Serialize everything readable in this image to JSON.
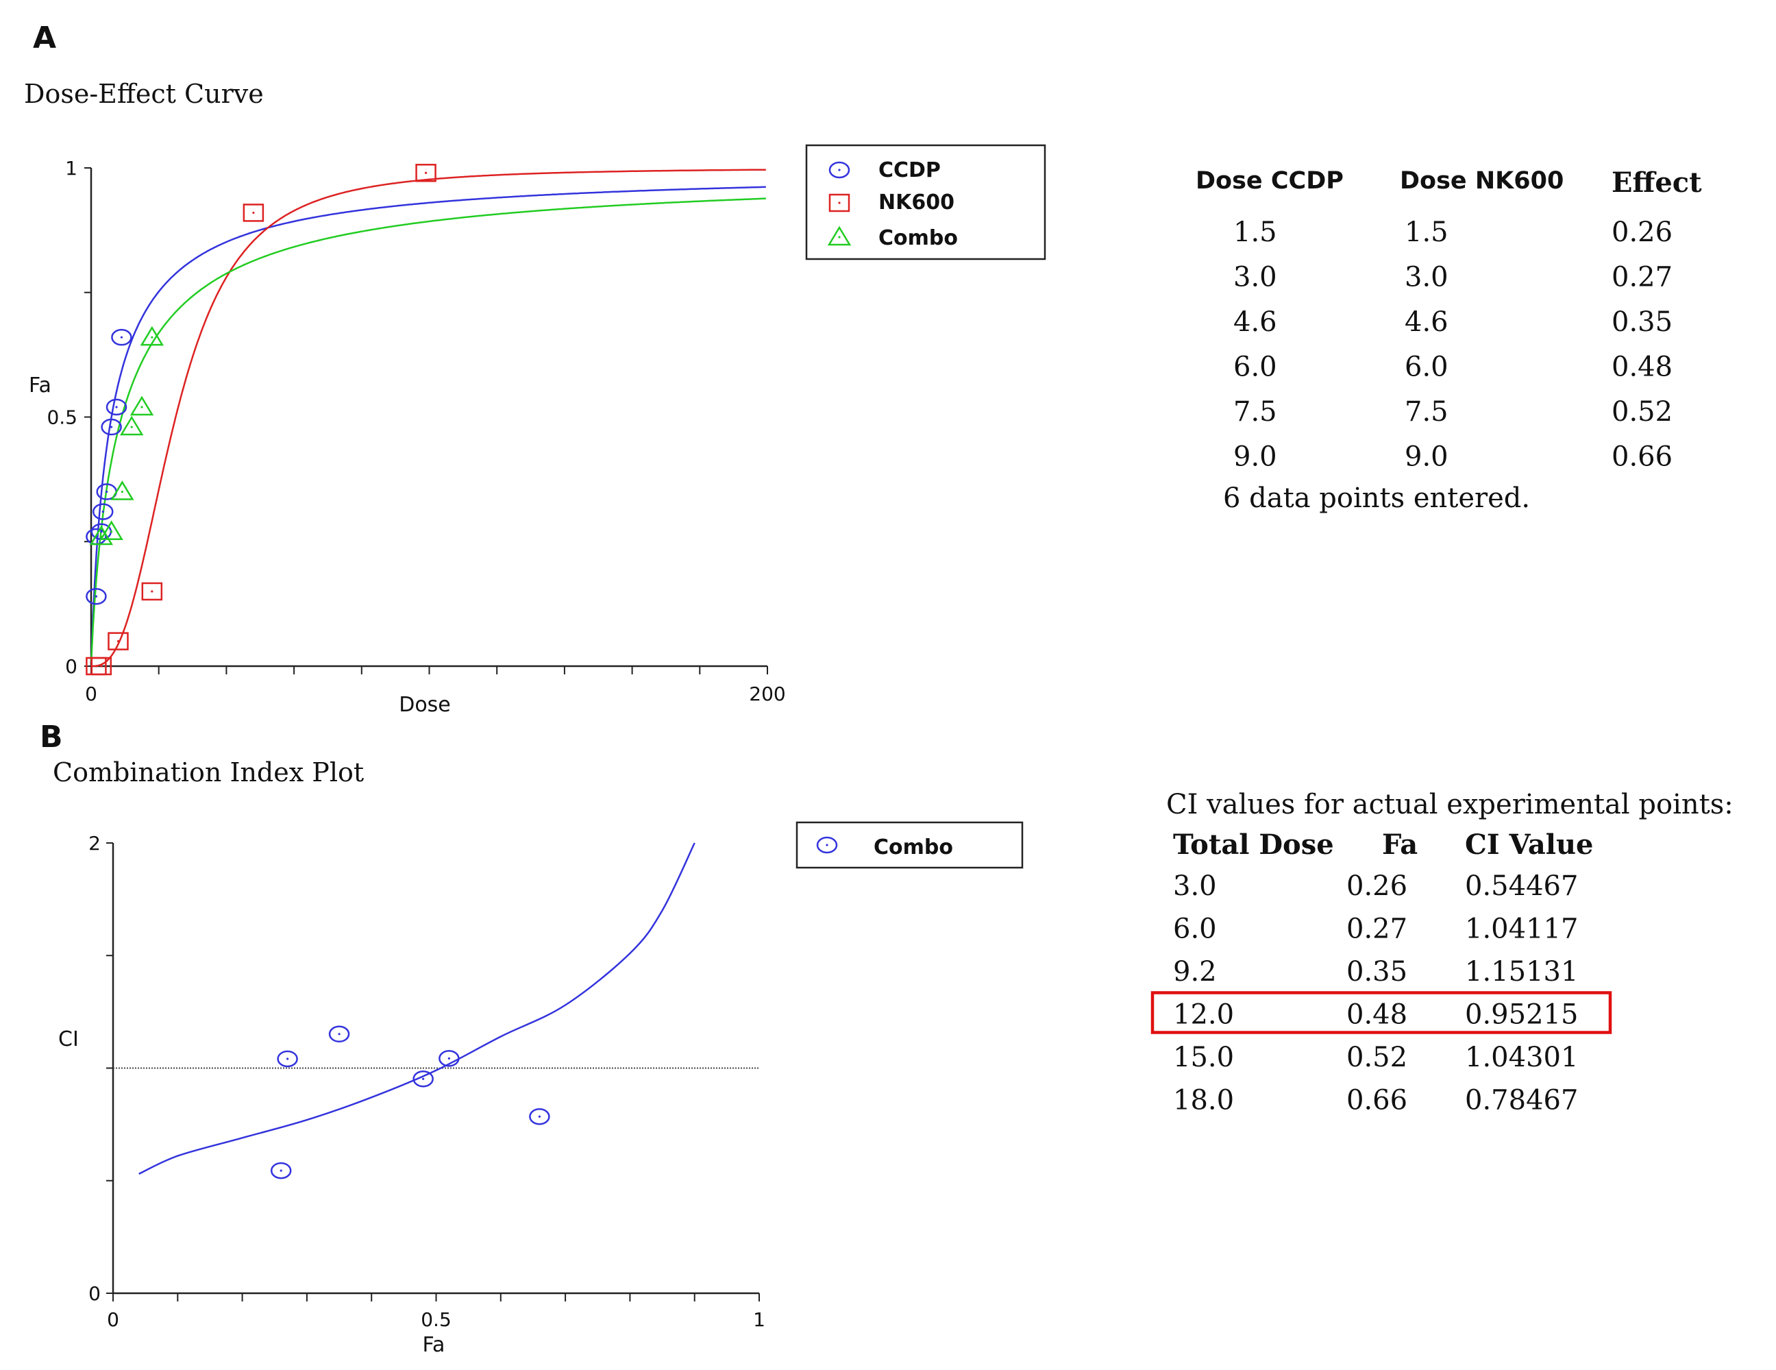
{
  "panel_a": {
    "letter": "A",
    "table": {
      "headers": [
        "Dose CCDP",
        "Dose NK600",
        "Effect"
      ],
      "rows": [
        [
          "1.5",
          "1.5",
          "0.26"
        ],
        [
          "3.0",
          "3.0",
          "0.27"
        ],
        [
          "4.6",
          "4.6",
          "0.35"
        ],
        [
          "6.0",
          "6.0",
          "0.48"
        ],
        [
          "7.5",
          "7.5",
          "0.52"
        ],
        [
          "9.0",
          "9.0",
          "0.66"
        ]
      ],
      "footer": "6 data points entered."
    }
  },
  "panel_b": {
    "letter": "B",
    "table": {
      "caption": "CI values for actual experimental points:",
      "headers": [
        "Total Dose",
        "Fa",
        "CI Value"
      ],
      "rows": [
        [
          "3.0",
          "0.26",
          "0.54467"
        ],
        [
          "6.0",
          "0.27",
          "1.04117"
        ],
        [
          "9.2",
          "0.35",
          "1.15131"
        ],
        [
          "12.0",
          "0.48",
          "0.95215"
        ],
        [
          "15.0",
          "0.52",
          "1.04301"
        ],
        [
          "18.0",
          "0.66",
          "0.78467"
        ]
      ],
      "highlighted_row_index": 3
    }
  },
  "colors": {
    "ccdp": "#3333dd",
    "nk600": "#dd2222",
    "combo": "#22cc22",
    "highlight": "#e01010"
  },
  "chart_data": [
    {
      "type": "scatter",
      "title": "Dose-Effect Curve",
      "xlabel": "Dose",
      "ylabel": "Fa",
      "xlim": [
        0,
        200
      ],
      "ylim": [
        0,
        1
      ],
      "x_tick_labels": [
        "0",
        "200"
      ],
      "y_tick_labels": [
        "0",
        "0.5",
        "1"
      ],
      "legend_position": "top-right",
      "series": [
        {
          "name": "CCDP",
          "marker": "circle",
          "color_key": "ccdp",
          "x": [
            1.5,
            3.0,
            4.6,
            6.0,
            7.5,
            9.0,
            1.5,
            3.5
          ],
          "y": [
            0.26,
            0.27,
            0.35,
            0.48,
            0.52,
            0.66,
            0.14,
            0.31
          ],
          "fit": {
            "dm": 6.0,
            "m": 0.92
          }
        },
        {
          "name": "NK600",
          "marker": "square",
          "color_key": "nk600",
          "x": [
            1.5,
            3.0,
            8.0,
            18.0,
            48.0,
            99.0
          ],
          "y": [
            0.0,
            0.0,
            0.05,
            0.15,
            0.91,
            0.99
          ],
          "fit": {
            "dm": 25.0,
            "m": 2.7
          }
        },
        {
          "name": "Combo",
          "marker": "triangle",
          "color_key": "combo",
          "x": [
            3.0,
            6.0,
            9.2,
            12.0,
            15.0,
            18.0
          ],
          "y": [
            0.26,
            0.27,
            0.35,
            0.48,
            0.52,
            0.66
          ],
          "fit": {
            "dm": 9.0,
            "m": 0.88
          }
        }
      ]
    },
    {
      "type": "scatter",
      "title": "Combination Index Plot",
      "xlabel": "Fa",
      "ylabel": "CI",
      "xlim": [
        0,
        1
      ],
      "ylim": [
        0,
        2
      ],
      "x_tick_labels": [
        "0",
        "0.5",
        "1"
      ],
      "y_tick_labels": [
        "0",
        "2"
      ],
      "reference_line_y": 1.0,
      "legend_position": "top-right",
      "series": [
        {
          "name": "Combo",
          "marker": "circle",
          "color_key": "ccdp",
          "x": [
            0.26,
            0.27,
            0.35,
            0.48,
            0.52,
            0.66
          ],
          "y": [
            0.54467,
            1.04117,
            1.15131,
            0.95215,
            1.04301,
            0.78467
          ],
          "curve_x": [
            0.04,
            0.1,
            0.2,
            0.3,
            0.4,
            0.5,
            0.6,
            0.7,
            0.8,
            0.85,
            0.9
          ],
          "curve_y": [
            0.53,
            0.61,
            0.69,
            0.77,
            0.87,
            0.99,
            1.14,
            1.28,
            1.51,
            1.7,
            2.0
          ]
        }
      ]
    }
  ]
}
